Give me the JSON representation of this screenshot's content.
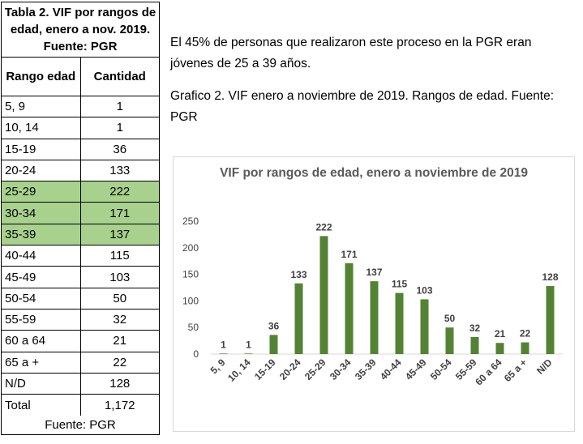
{
  "table": {
    "caption": "Tabla 2. VIF por rangos de edad, enero a nov. 2019. Fuente: PGR",
    "header": {
      "col1": "Rango edad",
      "col2": "Cantidad"
    },
    "rows": [
      {
        "range": "5, 9",
        "count": "1",
        "highlight": false
      },
      {
        "range": "10, 14",
        "count": "1",
        "highlight": false
      },
      {
        "range": "15-19",
        "count": "36",
        "highlight": false
      },
      {
        "range": "20-24",
        "count": "133",
        "highlight": false
      },
      {
        "range": "25-29",
        "count": "222",
        "highlight": true
      },
      {
        "range": "30-34",
        "count": "171",
        "highlight": true
      },
      {
        "range": "35-39",
        "count": "137",
        "highlight": true
      },
      {
        "range": "40-44",
        "count": "115",
        "highlight": false
      },
      {
        "range": "45-49",
        "count": "103",
        "highlight": false
      },
      {
        "range": "50-54",
        "count": "50",
        "highlight": false
      },
      {
        "range": "55-59",
        "count": "32",
        "highlight": false
      },
      {
        "range": "60 a 64",
        "count": "21",
        "highlight": false
      },
      {
        "range": "65 a +",
        "count": "22",
        "highlight": false
      },
      {
        "range": "N/D",
        "count": "128",
        "highlight": false
      }
    ],
    "total_label": "Total",
    "total_value": "1,172",
    "footer": "Fuente: PGR",
    "highlight_color": "#a9d18e"
  },
  "text": {
    "para1": "El 45% de personas que realizaron este proceso en la PGR eran jóvenes de 25 a 39 años.",
    "para2": "Grafico 2. VIF enero a noviembre de 2019. Rangos de edad. Fuente: PGR"
  },
  "chart_data": {
    "type": "bar",
    "title": "VIF por rangos de edad,  enero a noviembre de 2019",
    "categories": [
      "5, 9",
      "10, 14",
      "15-19",
      "20-24",
      "25-29",
      "30-34",
      "35-39",
      "40-44",
      "45-49",
      "50-54",
      "55-59",
      "60 a 64",
      "65 a +",
      "N/D"
    ],
    "values": [
      1,
      1,
      36,
      133,
      222,
      171,
      137,
      115,
      103,
      50,
      32,
      21,
      22,
      128
    ],
    "ylim": [
      0,
      250
    ],
    "yticks": [
      0,
      50,
      100,
      150,
      200,
      250
    ],
    "grid": false,
    "legend": "none",
    "bar_color": "#548235",
    "label_color": "#404040"
  }
}
